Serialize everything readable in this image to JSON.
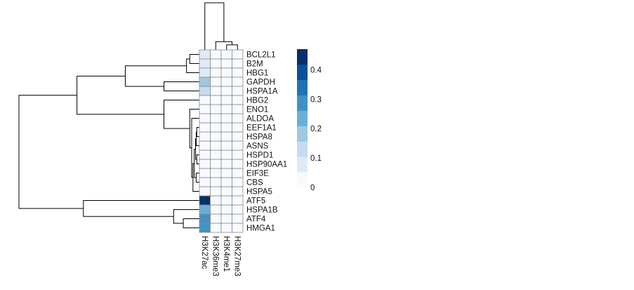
{
  "chart_data": {
    "type": "heatmap",
    "title": "",
    "rows": [
      "BCL2L1",
      "B2M",
      "HBG1",
      "GAPDH",
      "HSPA1A",
      "HBG2",
      "ENO1",
      "ALDOA",
      "EEF1A1",
      "HSPA8",
      "ASNS",
      "HSPD1",
      "HSP90AA1",
      "EIF3E",
      "CBS",
      "HSPA5",
      "ATF5",
      "HSPA1B",
      "ATF4",
      "HMGA1"
    ],
    "columns": [
      "H3K27ac",
      "H3K36me3",
      "H3K4me1",
      "H3K27me3"
    ],
    "values": [
      [
        0.06,
        0,
        0,
        0
      ],
      [
        0.08,
        0,
        0,
        0
      ],
      [
        0.07,
        0,
        0,
        0
      ],
      [
        0.16,
        0,
        0,
        0
      ],
      [
        0.14,
        0,
        0,
        0
      ],
      [
        0.04,
        0.02,
        0,
        0
      ],
      [
        0,
        0,
        0,
        0
      ],
      [
        0,
        0,
        0,
        0
      ],
      [
        0,
        0,
        0,
        0
      ],
      [
        0,
        0,
        0,
        0
      ],
      [
        0,
        0,
        0,
        0
      ],
      [
        0,
        0,
        0,
        0
      ],
      [
        0,
        0,
        0,
        0
      ],
      [
        0,
        0,
        0,
        0
      ],
      [
        0,
        0,
        0,
        0
      ],
      [
        0,
        0,
        0,
        0
      ],
      [
        0.47,
        0.01,
        0,
        0
      ],
      [
        0.26,
        0.02,
        0,
        0
      ],
      [
        0.28,
        0.03,
        0,
        0
      ],
      [
        0.3,
        0.03,
        0,
        0
      ]
    ],
    "color_scale": {
      "range": [
        0,
        0.47
      ],
      "ticks": [
        0,
        0.1,
        0.2,
        0.3,
        0.4
      ],
      "tick_labels": [
        "0",
        "0.1",
        "0.2",
        "0.3",
        "0.4"
      ],
      "colors": [
        "#f7fbff",
        "#deebf7",
        "#c6dbef",
        "#9ecae1",
        "#6baed6",
        "#4292c6",
        "#2171b5",
        "#08519c",
        "#08306b"
      ]
    },
    "row_dendrogram": {
      "merges": [
        {
          "a": "r8",
          "b": "r9",
          "h": 0.4
        },
        {
          "a": "n0",
          "b": "r10",
          "h": 0.5
        },
        {
          "a": "r11",
          "b": "r12",
          "h": 0.4
        },
        {
          "a": "n1",
          "b": "n2",
          "h": 0.6
        },
        {
          "a": "r13",
          "b": "r14",
          "h": 0.5
        },
        {
          "a": "n3",
          "b": "n4",
          "h": 0.8
        },
        {
          "a": "n5",
          "b": "r15",
          "h": 1.0
        },
        {
          "a": "r7",
          "b": "n6",
          "h": 1.2
        },
        {
          "a": "r6",
          "b": "n7",
          "h": 1.5
        },
        {
          "a": "r5",
          "b": "n8",
          "h": 5.5
        },
        {
          "a": "r0",
          "b": "r1",
          "h": 1.5
        },
        {
          "a": "n10",
          "b": "r2",
          "h": 2.0
        },
        {
          "a": "r3",
          "b": "r4",
          "h": 5.5
        },
        {
          "a": "n11",
          "b": "n12",
          "h": 11.5
        },
        {
          "a": "n13",
          "b": "n9",
          "h": 19.0
        },
        {
          "a": "r18",
          "b": "r19",
          "h": 2.5
        },
        {
          "a": "r17",
          "b": "n15",
          "h": 4.0
        },
        {
          "a": "r16",
          "b": "n16",
          "h": 18.0
        },
        {
          "a": "n14",
          "b": "n17",
          "h": 28.0
        }
      ],
      "max_height": 28.0
    },
    "column_dendrogram": {
      "merges": [
        {
          "a": "c2",
          "b": "c3",
          "h": 0.8
        },
        {
          "a": "c1",
          "b": "n0",
          "h": 1.3
        },
        {
          "a": "c0",
          "b": "n1",
          "h": 7.5
        }
      ],
      "max_height": 7.5
    }
  }
}
